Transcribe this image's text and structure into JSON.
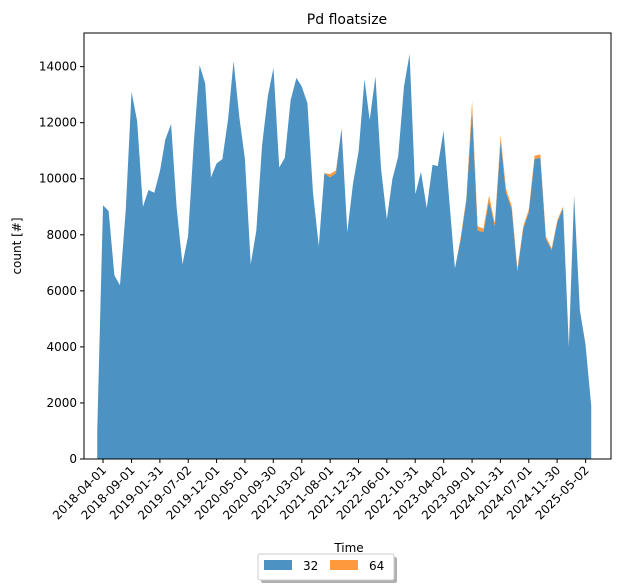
{
  "chart_data": {
    "type": "area",
    "stacked": true,
    "title": "Pd floatsize",
    "xlabel": "Time",
    "ylabel": "count [#]",
    "ylim": [
      0,
      15200
    ],
    "yticks": [
      0,
      2000,
      4000,
      6000,
      8000,
      10000,
      12000,
      14000
    ],
    "xlim": [
      "2017-12-20",
      "2025-09-15"
    ],
    "xticks": [
      "2018-04-01",
      "2018-09-01",
      "2019-01-31",
      "2019-07-02",
      "2019-12-01",
      "2020-05-01",
      "2020-09-30",
      "2021-03-02",
      "2021-08-01",
      "2021-12-31",
      "2022-06-01",
      "2022-10-31",
      "2023-04-02",
      "2023-09-01",
      "2024-01-31",
      "2024-07-01",
      "2024-11-30",
      "2025-05-02"
    ],
    "legend": {
      "placement": "bottom-center",
      "columns": 2
    },
    "colors": {
      "32": "#1f77b4",
      "64": "#ff7f0e"
    },
    "x": [
      "2018-03-01",
      "2018-04-01",
      "2018-05-01",
      "2018-06-01",
      "2018-07-01",
      "2018-08-01",
      "2018-09-01",
      "2018-10-01",
      "2018-11-01",
      "2018-12-01",
      "2019-01-01",
      "2019-02-01",
      "2019-03-01",
      "2019-04-01",
      "2019-05-01",
      "2019-06-01",
      "2019-07-01",
      "2019-08-01",
      "2019-09-01",
      "2019-10-01",
      "2019-11-01",
      "2019-12-01",
      "2020-01-01",
      "2020-02-01",
      "2020-03-01",
      "2020-04-01",
      "2020-05-01",
      "2020-06-01",
      "2020-07-01",
      "2020-08-01",
      "2020-09-01",
      "2020-10-01",
      "2020-11-01",
      "2020-12-01",
      "2021-01-01",
      "2021-02-01",
      "2021-03-01",
      "2021-04-01",
      "2021-05-01",
      "2021-06-01",
      "2021-07-01",
      "2021-08-01",
      "2021-09-01",
      "2021-10-01",
      "2021-11-01",
      "2021-12-01",
      "2022-01-01",
      "2022-02-01",
      "2022-03-01",
      "2022-04-01",
      "2022-05-01",
      "2022-06-01",
      "2022-07-01",
      "2022-08-01",
      "2022-09-01",
      "2022-10-01",
      "2022-11-01",
      "2022-12-01",
      "2023-01-01",
      "2023-02-01",
      "2023-03-01",
      "2023-04-01",
      "2023-05-01",
      "2023-06-01",
      "2023-07-01",
      "2023-08-01",
      "2023-09-01",
      "2023-10-01",
      "2023-11-01",
      "2023-12-01",
      "2024-01-01",
      "2024-02-01",
      "2024-03-01",
      "2024-04-01",
      "2024-05-01",
      "2024-06-01",
      "2024-07-01",
      "2024-08-01",
      "2024-09-01",
      "2024-10-01",
      "2024-11-01",
      "2024-12-01",
      "2025-01-01",
      "2025-02-01",
      "2025-03-01",
      "2025-04-01",
      "2025-05-01",
      "2025-06-01"
    ],
    "series": [
      {
        "name": "32",
        "values": [
          1000,
          9050,
          8850,
          6550,
          6200,
          8900,
          13100,
          12050,
          9000,
          9600,
          9500,
          10300,
          11400,
          11950,
          8950,
          6950,
          7950,
          11300,
          14050,
          13400,
          10050,
          10550,
          10700,
          12150,
          14200,
          12200,
          10700,
          6950,
          8150,
          11200,
          12950,
          13950,
          10400,
          10750,
          12800,
          13600,
          13300,
          12700,
          9500,
          7600,
          10200,
          10050,
          10200,
          11800,
          8100,
          9800,
          11000,
          13550,
          12100,
          13650,
          10350,
          8550,
          10000,
          10800,
          13300,
          14450,
          9450,
          10250,
          8950,
          10500,
          10450,
          11700,
          9300,
          6800,
          7800,
          9200,
          12400,
          8150,
          8100,
          9200,
          8300,
          11350,
          9500,
          8900,
          6700,
          8200,
          8800,
          10700,
          10750,
          7850,
          7450,
          8450,
          8950,
          4000,
          9400,
          5300,
          4100,
          1900
        ]
      },
      {
        "name": "64",
        "values": [
          0,
          0,
          0,
          0,
          0,
          0,
          0,
          0,
          0,
          0,
          0,
          0,
          0,
          0,
          0,
          0,
          0,
          0,
          0,
          0,
          0,
          0,
          0,
          0,
          0,
          0,
          0,
          0,
          0,
          0,
          0,
          0,
          0,
          0,
          0,
          0,
          0,
          0,
          0,
          0,
          0,
          120,
          100,
          0,
          0,
          0,
          0,
          0,
          0,
          0,
          0,
          0,
          0,
          0,
          0,
          0,
          0,
          0,
          0,
          0,
          0,
          0,
          0,
          0,
          80,
          100,
          380,
          150,
          120,
          200,
          120,
          200,
          140,
          120,
          80,
          90,
          100,
          120,
          120,
          90,
          70,
          70,
          60,
          30,
          30,
          20,
          10,
          10
        ]
      }
    ]
  }
}
